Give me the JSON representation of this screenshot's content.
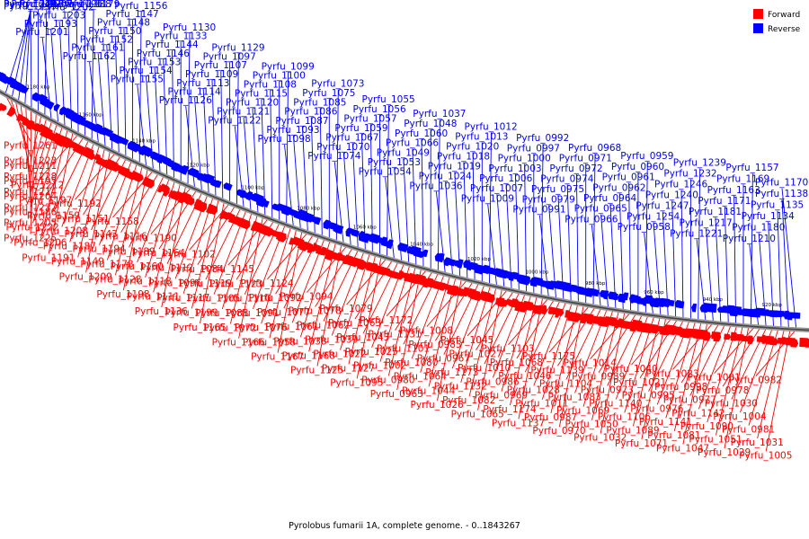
{
  "caption": "Pyrolobus fumarii 1A, complete genome. - 0..1843267",
  "legend": [
    {
      "label": "Forward",
      "color": "#ff0000"
    },
    {
      "label": "Reverse",
      "color": "#0000ff"
    }
  ],
  "strand_colors": {
    "forward": "#ff0000",
    "reverse": "#0000ff"
  },
  "scale_ticks": [
    "1180 kbp",
    "1160 kbp",
    "1140 kbp",
    "1120 kbp",
    "1100 kbp",
    "1080 kbp",
    "1060 kbp",
    "1040 kbp",
    "1020 kbp",
    "1000 kbp",
    "980 kbp",
    "960 kbp",
    "940 kbp",
    "920 kbp"
  ],
  "reverse_labels": [
    "Pyrfu_1259",
    "Pyrfu_1245",
    "Pyrfu_1226",
    "Pyrfu_1224",
    "Pyrfu_1219",
    "Pyrfu_1215",
    "Pyrfu_1207",
    "Pyrfu_1201",
    "Pyrfu_1193",
    "Pyrfu_1203",
    "Pyrfu_1202",
    "Pyrfu_1196",
    "Pyrfu_1188",
    "Pyrfu_1179",
    "Pyrfu_1162",
    "Pyrfu_1161",
    "Pyrfu_1152",
    "Pyrfu_1150",
    "Pyrfu_1148",
    "Pyrfu_1147",
    "Pyrfu_1156",
    "Pyrfu_1155",
    "Pyrfu_1154",
    "Pyrfu_1153",
    "Pyrfu_1146",
    "Pyrfu_1144",
    "Pyrfu_1133",
    "Pyrfu_1130",
    "Pyrfu_1126",
    "Pyrfu_1114",
    "Pyrfu_1113",
    "Pyrfu_1109",
    "Pyrfu_1107",
    "Pyrfu_1097",
    "Pyrfu_1129",
    "Pyrfu_1122",
    "Pyrfu_1121",
    "Pyrfu_1120",
    "Pyrfu_1115",
    "Pyrfu_1108",
    "Pyrfu_1100",
    "Pyrfu_1099",
    "Pyrfu_1098",
    "Pyrfu_1093",
    "Pyrfu_1087",
    "Pyrfu_1086",
    "Pyrfu_1085",
    "Pyrfu_1075",
    "Pyrfu_1073",
    "Pyrfu_1074",
    "Pyrfu_1070",
    "Pyrfu_1067",
    "Pyrfu_1059",
    "Pyrfu_1057",
    "Pyrfu_1056",
    "Pyrfu_1055",
    "Pyrfu_1054",
    "Pyrfu_1053",
    "Pyrfu_1049",
    "Pyrfu_1066",
    "Pyrfu_1060",
    "Pyrfu_1048",
    "Pyrfu_1037",
    "Pyrfu_1036",
    "Pyrfu_1024",
    "Pyrfu_1019",
    "Pyrfu_1018",
    "Pyrfu_1020",
    "Pyrfu_1013",
    "Pyrfu_1012",
    "Pyrfu_1009",
    "Pyrfu_1007",
    "Pyrfu_1006",
    "Pyrfu_1003",
    "Pyrfu_1000",
    "Pyrfu_0997",
    "Pyrfu_0992",
    "Pyrfu_0991",
    "Pyrfu_0979",
    "Pyrfu_0975",
    "Pyrfu_0974",
    "Pyrfu_0972",
    "Pyrfu_0971",
    "Pyrfu_0968",
    "Pyrfu_0966",
    "Pyrfu_0965",
    "Pyrfu_0964",
    "Pyrfu_0962",
    "Pyrfu_0961",
    "Pyrfu_0960",
    "Pyrfu_0959",
    "Pyrfu_0958",
    "Pyrfu_1254",
    "Pyrfu_1247",
    "Pyrfu_1240",
    "Pyrfu_1246",
    "Pyrfu_1232",
    "Pyrfu_1239",
    "Pyrfu_1221",
    "Pyrfu_1217",
    "Pyrfu_1181",
    "Pyrfu_1171",
    "Pyrfu_1163",
    "Pyrfu_1169",
    "Pyrfu_1157",
    "Pyrfu_1210",
    "Pyrfu_1180",
    "Pyrfu_1134",
    "Pyrfu_1135",
    "Pyrfu_1138",
    "Pyrfu_1170"
  ],
  "forward_labels": [
    "Pyrfu_1261",
    "Pyrfu_1223",
    "Pyrfu_1228",
    "Pyrfu_1214",
    "Pyrfu_1237",
    "Pyrfu_1205",
    "Pyrfu_1225",
    "Pyrfu_1211",
    "Pyrfu_1195",
    "Pyrfu_1204",
    "Pyrfu_1186",
    "Pyrfu_1222",
    "Pyrfu_1206",
    "Pyrfu_1191",
    "Pyrfu_1212",
    "Pyrfu_1197",
    "Pyrfu_1159",
    "Pyrfu_1208",
    "Pyrfu_1187",
    "Pyrfu_1149",
    "Pyrfu_1209",
    "Pyrfu_1192",
    "Pyrfu_1151",
    "Pyrfu_1143",
    "Pyrfu_1194",
    "Pyrfu_1178",
    "Pyrfu_1128",
    "Pyrfu_1198",
    "Pyrfu_1158",
    "Pyrfu_1116",
    "Pyrfu_1189",
    "Pyrfu_1160",
    "Pyrfu_1118",
    "Pyrfu_1111",
    "Pyrfu_1136",
    "Pyrfu_1190",
    "Pyrfu_1164",
    "Pyrfu_1112",
    "Pyrfu_1096",
    "Pyrfu_1117",
    "Pyrfu_1199",
    "Pyrfu_1165",
    "Pyrfu_1102",
    "Pyrfu_1084",
    "Pyrfu_1119",
    "Pyrfu_1105",
    "Pyrfu_1088",
    "Pyrfu_1072",
    "Pyrfu_1166",
    "Pyrfu_1145",
    "Pyrfu_1123",
    "Pyrfu_1110",
    "Pyrfu_1091",
    "Pyrfu_1076",
    "Pyrfu_1058",
    "Pyrfu_1167",
    "Pyrfu_1124",
    "Pyrfu_1092",
    "Pyrfu_1077",
    "Pyrfu_1061",
    "Pyrfu_1038",
    "Pyrfu_1168",
    "Pyrfu_1125",
    "Pyrfu_1094",
    "Pyrfu_1078",
    "Pyrfu_1062",
    "Pyrfu_1039",
    "Pyrfu_1022",
    "Pyrfu_1127",
    "Pyrfu_1095",
    "Pyrfu_1079",
    "Pyrfu_1063",
    "Pyrfu_1043",
    "Pyrfu_1025",
    "Pyrfu_1002",
    "Pyrfu_0980",
    "Pyrfu_0963",
    "Pyrfu_1172",
    "Pyrfu_1131",
    "Pyrfu_1101",
    "Pyrfu_1080",
    "Pyrfu_1064",
    "Pyrfu_1044",
    "Pyrfu_1026",
    "Pyrfu_1008",
    "Pyrfu_0985",
    "Pyrfu_0967",
    "Pyrfu_1173",
    "Pyrfu_1132",
    "Pyrfu_1082",
    "Pyrfu_1065",
    "Pyrfu_1045",
    "Pyrfu_1027",
    "Pyrfu_1010",
    "Pyrfu_0986",
    "Pyrfu_0969",
    "Pyrfu_1174",
    "Pyrfu_1137",
    "Pyrfu_1103",
    "Pyrfu_1068",
    "Pyrfu_1046",
    "Pyrfu_1028",
    "Pyrfu_1011",
    "Pyrfu_0987",
    "Pyrfu_0970",
    "Pyrfu_1175",
    "Pyrfu_1139",
    "Pyrfu_1104",
    "Pyrfu_1083",
    "Pyrfu_1069",
    "Pyrfu_1050",
    "Pyrfu_1032",
    "Pyrfu_1014",
    "Pyrfu_0989",
    "Pyrfu_0973",
    "Pyrfu_1140",
    "Pyrfu_1106",
    "Pyrfu_1089",
    "Pyrfu_1071",
    "Pyrfu_1040",
    "Pyrfu_1021",
    "Pyrfu_0995",
    "Pyrfu_0976",
    "Pyrfu_1141",
    "Pyrfu_1081",
    "Pyrfu_1047",
    "Pyrfu_1023",
    "Pyrfu_0998",
    "Pyrfu_0977",
    "Pyrfu_1142",
    "Pyrfu_1090",
    "Pyrfu_1051",
    "Pyrfu_1029",
    "Pyrfu_1001",
    "Pyrfu_0978",
    "Pyrfu_1030",
    "Pyrfu_1004",
    "Pyrfu_0981",
    "Pyrfu_1031",
    "Pyrfu_1005",
    "Pyrfu_0982"
  ]
}
